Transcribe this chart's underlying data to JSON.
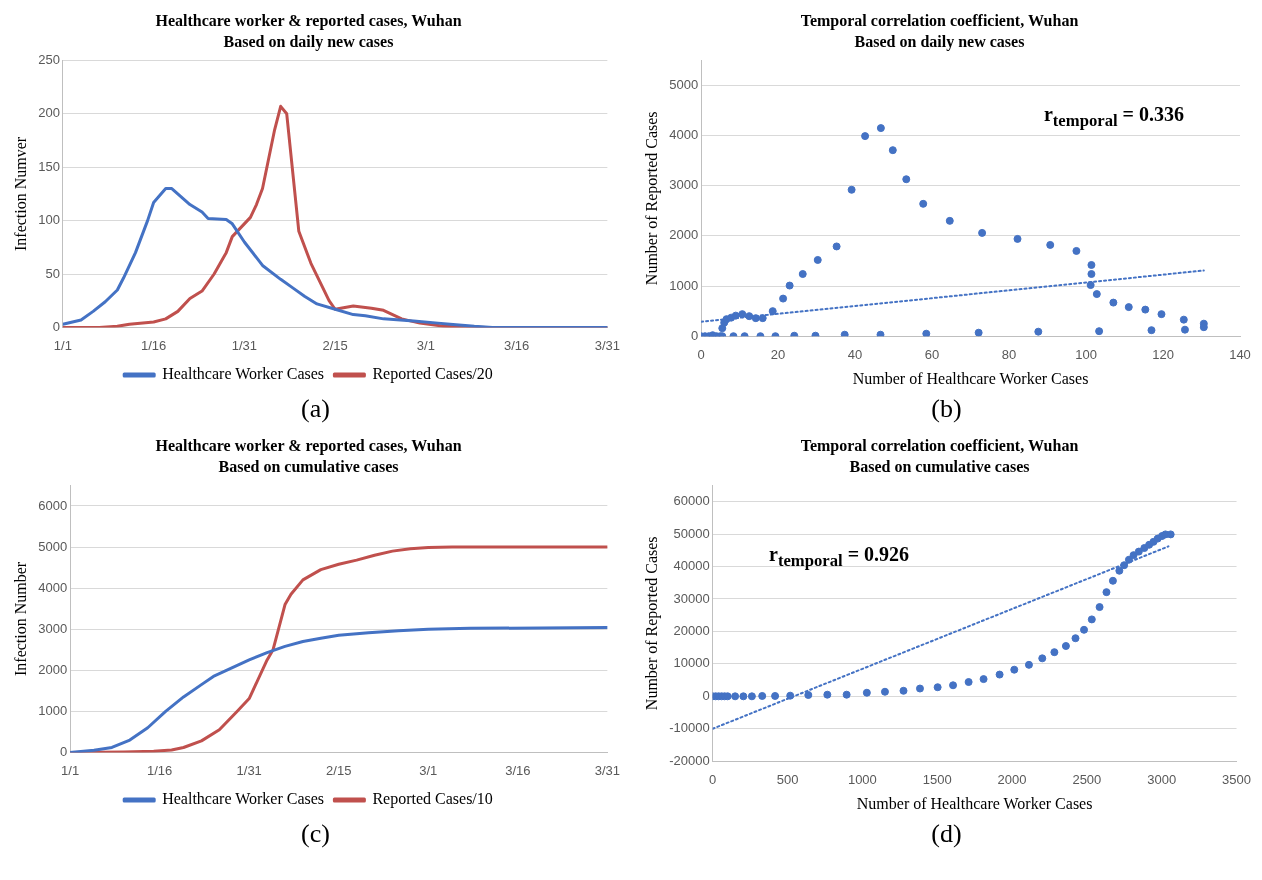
{
  "chart_data": [
    {
      "type": "line",
      "title": "Healthcare worker & reported cases, Wuhan",
      "subtitle": "Based on daily new cases",
      "ylabel": "Infection Numver",
      "xlim": [
        "--01-01",
        "--03-31"
      ],
      "xticks": [
        {
          "value": "--01-01",
          "label": "1/1"
        },
        {
          "value": "--01-16",
          "label": "1/16"
        },
        {
          "value": "--01-31",
          "label": "1/31"
        },
        {
          "value": "--02-15",
          "label": "2/15"
        },
        {
          "value": "--03-01",
          "label": "3/1"
        },
        {
          "value": "--03-16",
          "label": "3/16"
        },
        {
          "value": "--03-31",
          "label": "3/31"
        }
      ],
      "ylim": [
        0,
        250
      ],
      "yticks": [
        0,
        50,
        100,
        150,
        200,
        250
      ],
      "grid": "y",
      "legend": "bottom",
      "annotations": [
        "(a)"
      ],
      "series": [
        {
          "name": "Healthcare Worker Cases",
          "color": "#4472c4",
          "x": [
            "--01-01",
            "--01-04",
            "--01-06",
            "--01-08",
            "--01-10",
            "--01-11",
            "--01-13",
            "--01-15",
            "--01-16",
            "--01-18",
            "--01-19",
            "--01-22",
            "--01-24",
            "--01-25",
            "--01-28",
            "--01-29",
            "--01-31",
            "--02-03",
            "--02-06",
            "--02-08",
            "--02-10",
            "--02-12",
            "--02-15",
            "--02-18",
            "--02-20",
            "--02-23",
            "--02-28",
            "--03-03",
            "--03-05",
            "--03-09",
            "--03-12",
            "--03-31"
          ],
          "values": [
            3,
            7,
            15,
            24,
            35,
            46,
            70,
            100,
            117,
            130,
            130,
            115,
            108,
            102,
            101,
            97,
            80,
            58,
            45,
            37,
            29,
            22,
            17,
            12,
            11,
            8,
            6,
            4,
            3,
            1,
            0,
            0
          ]
        },
        {
          "name": "Reported Cases/20",
          "color": "#c0504d",
          "x": [
            "--01-01",
            "--01-07",
            "--01-10",
            "--01-12",
            "--01-16",
            "--01-18",
            "--01-20",
            "--01-22",
            "--01-24",
            "--01-26",
            "--01-28",
            "--01-29",
            "--02-01",
            "--02-02",
            "--02-03",
            "--02-05",
            "--02-06",
            "--02-07",
            "--02-09",
            "--02-11",
            "--02-14",
            "--02-15",
            "--02-18",
            "--02-21",
            "--02-23",
            "--02-26",
            "--02-29",
            "--03-04",
            "--03-11",
            "--03-31"
          ],
          "values": [
            0,
            0,
            1,
            3,
            5,
            8,
            15,
            27,
            34,
            50,
            70,
            85,
            103,
            115,
            130,
            185,
            207,
            200,
            90,
            60,
            25,
            17,
            20,
            18,
            16,
            8,
            4,
            1,
            0,
            0
          ]
        }
      ]
    },
    {
      "type": "scatter",
      "title": "Temporal correlation coefficient, Wuhan",
      "subtitle": "Based on daily new cases",
      "xlabel": "Number of Healthcare Worker Cases",
      "ylabel": "Number of Reported Cases",
      "xlim": [
        0,
        140
      ],
      "xticks": [
        0,
        20,
        40,
        60,
        80,
        100,
        120,
        140
      ],
      "ylim": [
        0,
        5500
      ],
      "yticks": [
        0,
        1000,
        2000,
        3000,
        4000,
        5000
      ],
      "grid": "y",
      "marker": "circle",
      "annotations": [
        "r$_{temporal}$ = 0.336",
        "(b)"
      ],
      "series": [
        {
          "color": "#4472c4",
          "x": [
            0,
            1,
            2,
            3,
            4,
            5,
            3,
            5.5,
            6,
            6.6,
            7.8,
            9,
            10.7,
            12.5,
            14.2,
            16,
            18.6,
            21.3,
            23,
            26.4,
            30.3,
            35.2,
            39.1,
            42.6,
            46.7,
            49.8,
            53.3,
            57.7,
            64.6,
            73,
            82.2,
            90.7,
            97.5,
            101.4,
            101.4,
            101.2,
            102.8,
            107.1,
            111.1,
            115.4,
            119.6,
            125.4,
            130.6,
            130.6,
            125.7,
            117,
            103.4,
            87.6,
            72.1,
            58.5,
            46.6,
            37.3,
            29.7,
            24.2,
            19.3,
            15.4,
            11.3,
            8.4,
            5.5
          ],
          "values": [
            0,
            0,
            0,
            0,
            0,
            0,
            20,
            160,
            270,
            340,
            370,
            410,
            440,
            400,
            360,
            360,
            500,
            750,
            1010,
            1240,
            1520,
            1790,
            2920,
            3990,
            4150,
            3710,
            3130,
            2640,
            2300,
            2060,
            1940,
            1820,
            1700,
            1420,
            1240,
            1020,
            840,
            670,
            580,
            530,
            440,
            330,
            250,
            180,
            130,
            120,
            100,
            90,
            70,
            50,
            30,
            30,
            10,
            10,
            0,
            0,
            0,
            0,
            0
          ]
        },
        {
          "type": "line",
          "marker": "none",
          "line_style": "dotted",
          "color": "#4472c4",
          "x": [
            0,
            130.6
          ],
          "values": [
            290,
            1310
          ]
        }
      ]
    },
    {
      "type": "line",
      "title": "Healthcare worker & reported cases, Wuhan",
      "subtitle": "Based on cumulative cases",
      "ylabel": "Infection Number",
      "xlim": [
        "--01-01",
        "--03-31"
      ],
      "xticks": [
        {
          "value": "--01-01",
          "label": "1/1"
        },
        {
          "value": "--01-16",
          "label": "1/16"
        },
        {
          "value": "--01-31",
          "label": "1/31"
        },
        {
          "value": "--02-15",
          "label": "2/15"
        },
        {
          "value": "--03-01",
          "label": "3/1"
        },
        {
          "value": "--03-16",
          "label": "3/16"
        },
        {
          "value": "--03-31",
          "label": "3/31"
        }
      ],
      "ylim": [
        0,
        6500
      ],
      "yticks": [
        0,
        1000,
        2000,
        3000,
        4000,
        5000,
        6000
      ],
      "grid": "y",
      "legend": "bottom",
      "annotations": [
        "(c)"
      ],
      "series": [
        {
          "name": "Healthcare Worker Cases",
          "color": "#4472c4",
          "x": [
            "--01-01",
            "--01-05",
            "--01-08",
            "--01-11",
            "--01-14",
            "--01-17",
            "--01-20",
            "--01-23",
            "--01-25",
            "--01-28",
            "--01-31",
            "--02-03",
            "--02-06",
            "--02-09",
            "--02-12",
            "--02-15",
            "--02-20",
            "--02-25",
            "--03-01",
            "--03-08",
            "--03-20",
            "--03-31"
          ],
          "values": [
            0,
            50,
            120,
            300,
            600,
            1000,
            1350,
            1650,
            1850,
            2050,
            2250,
            2430,
            2580,
            2700,
            2780,
            2850,
            2910,
            2960,
            3000,
            3020,
            3030,
            3040
          ]
        },
        {
          "name": "Reported Cases/10",
          "color": "#c0504d",
          "x": [
            "--01-01",
            "--01-10",
            "--01-15",
            "--01-18",
            "--01-20",
            "--01-23",
            "--01-26",
            "--01-29",
            "--01-31",
            "--02-03",
            "--02-04",
            "--02-06",
            "--02-07",
            "--02-09",
            "--02-12",
            "--02-15",
            "--02-18",
            "--02-21",
            "--02-24",
            "--02-27",
            "--03-01",
            "--03-05",
            "--03-31"
          ],
          "values": [
            0,
            10,
            30,
            60,
            120,
            280,
            550,
            1000,
            1310,
            2250,
            2500,
            3600,
            3850,
            4200,
            4450,
            4580,
            4680,
            4800,
            4900,
            4960,
            4990,
            5000,
            5000
          ]
        }
      ]
    },
    {
      "type": "scatter",
      "title": "Temporal correlation coefficient, Wuhan",
      "subtitle": "Based on cumulative cases",
      "xlabel": "Number of Healthcare Worker Cases",
      "ylabel": "Number of Reported Cases",
      "xlim": [
        0,
        3500
      ],
      "xticks": [
        0,
        500,
        1000,
        1500,
        2000,
        2500,
        3000,
        3500
      ],
      "ylim": [
        -20000,
        65000
      ],
      "yticks": [
        -20000,
        -10000,
        0,
        10000,
        20000,
        30000,
        40000,
        50000,
        60000
      ],
      "grid": "y",
      "marker": "circle",
      "annotations": [
        "r$_{temporal}$ = 0.926",
        "(d)"
      ],
      "series": [
        {
          "color": "#4472c4",
          "x": [
            0,
            20,
            40,
            60,
            80,
            100,
            150,
            205,
            262,
            331,
            417,
            518,
            639,
            766,
            895,
            1030,
            1151,
            1275,
            1385,
            1503,
            1606,
            1710,
            1810,
            1917,
            2015,
            2113,
            2202,
            2283,
            2360,
            2424,
            2481,
            2533,
            2585,
            2631,
            2674,
            2717,
            2749,
            2781,
            2812,
            2847,
            2884,
            2916,
            2945,
            2973,
            3002,
            3025,
            3060
          ],
          "values": [
            0,
            0,
            0,
            0,
            0,
            0,
            0,
            0,
            0,
            100,
            100,
            200,
            400,
            500,
            500,
            1100,
            1400,
            1700,
            2400,
            2800,
            3400,
            4400,
            5300,
            6700,
            8200,
            9700,
            11700,
            13600,
            15500,
            17900,
            20500,
            23700,
            27500,
            32100,
            35600,
            38700,
            40400,
            42100,
            43500,
            44600,
            45700,
            46700,
            47600,
            48600,
            49400,
            49900,
            49900
          ]
        },
        {
          "type": "line",
          "marker": "none",
          "line_style": "dotted",
          "color": "#4472c4",
          "x": [
            0,
            3045
          ],
          "values": [
            -10000,
            46200
          ]
        }
      ]
    }
  ]
}
